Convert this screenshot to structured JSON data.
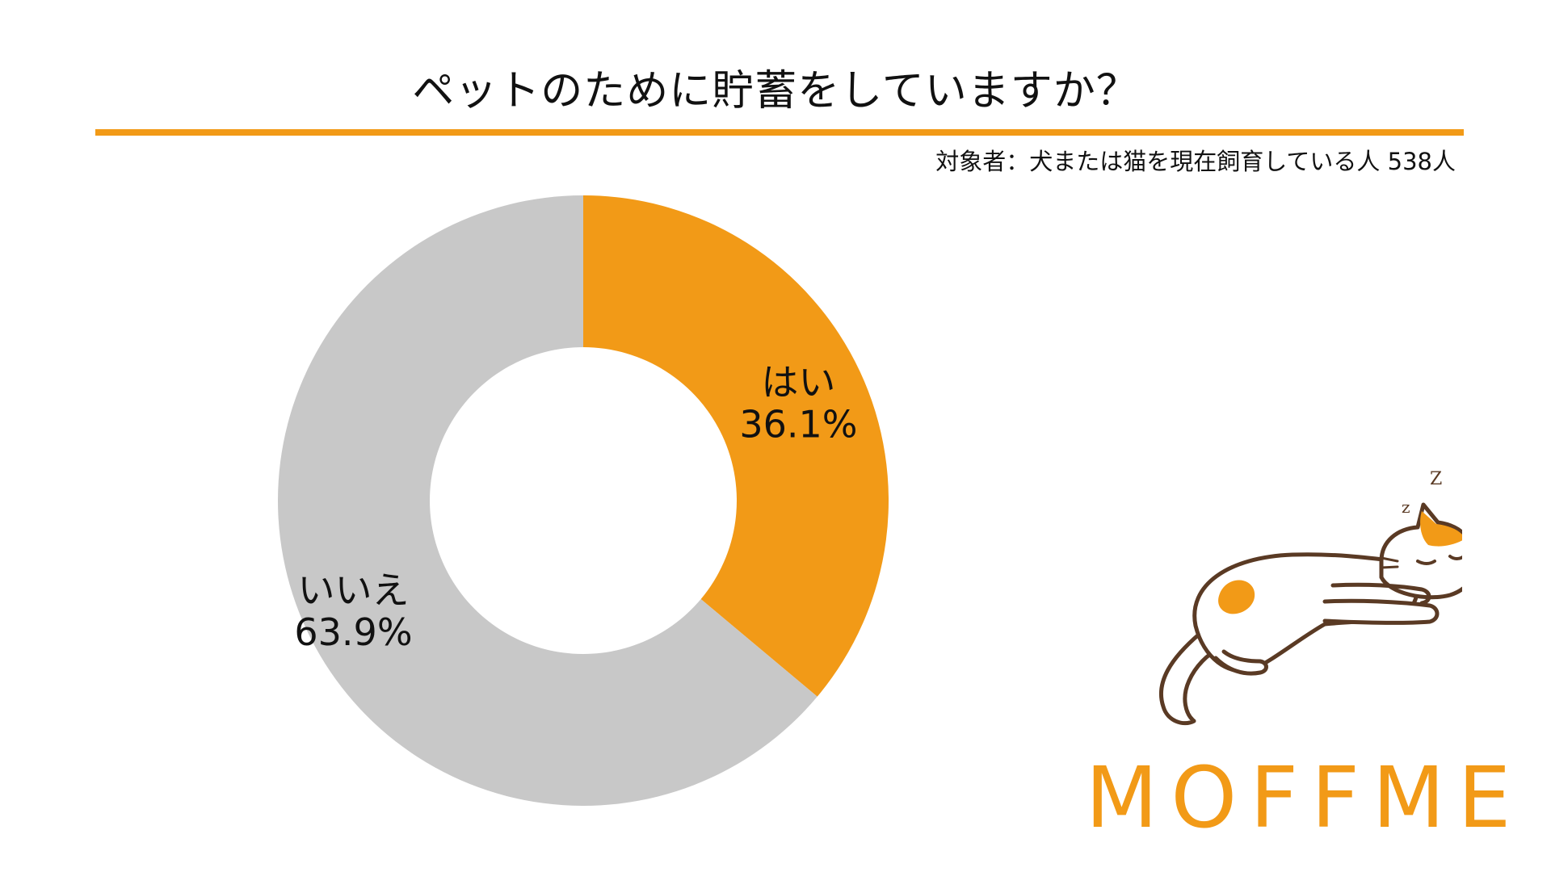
{
  "header": {
    "title": "ペットのために貯蓄をしていますか？",
    "subtitle": "対象者：犬または猫を現在飼育している人 538人"
  },
  "brand": {
    "logo_text": "MOFFME"
  },
  "illustration": {
    "zzz_small": "z",
    "zzz_large": "Z"
  },
  "colors": {
    "accent": "#F29A17",
    "yes": "#F29A17",
    "no": "#C8C8C8",
    "line": "#5A3A24"
  },
  "chart_data": {
    "type": "pie",
    "variant": "donut",
    "categories": [
      "はい",
      "いいえ"
    ],
    "values": [
      36.1,
      63.9
    ],
    "value_labels": [
      "36.1%",
      "63.9%"
    ],
    "colors": [
      "#F29A17",
      "#C8C8C8"
    ],
    "start": "top, clockwise",
    "legend": "none (labels on slices)"
  }
}
